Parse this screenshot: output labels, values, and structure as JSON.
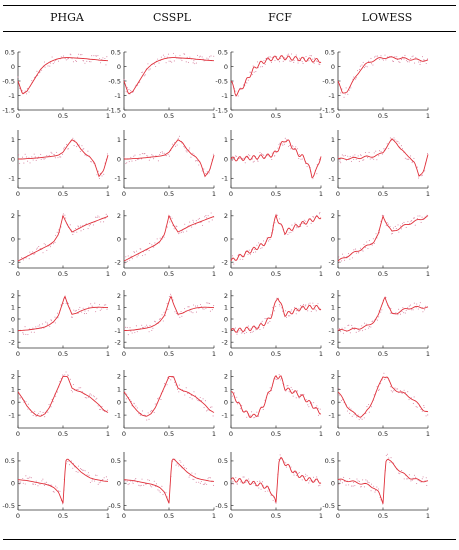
{
  "table": {
    "columns": [
      "PHGA",
      "CSSPL",
      "FCF",
      "LOWESS"
    ]
  },
  "colors": {
    "fit": "#e0303a",
    "points": "#d98aa6",
    "axis": "#333333"
  },
  "chart_data": [
    {
      "type": "scatter",
      "row": 1,
      "xlim": [
        0,
        1
      ],
      "ylim": [
        -1.5,
        0.5
      ],
      "yticks": [
        "0.5",
        "0",
        "-0.5",
        "-1",
        "-1.5"
      ],
      "xticks": [
        "0",
        "0.5",
        "1"
      ],
      "x": [
        0,
        0.05,
        0.1,
        0.15,
        0.2,
        0.25,
        0.3,
        0.35,
        0.4,
        0.45,
        0.5,
        0.55,
        0.6,
        0.65,
        0.7,
        0.75,
        0.8,
        0.85,
        0.9,
        0.95,
        1
      ],
      "y": [
        -0.5,
        -0.95,
        -0.85,
        -0.6,
        -0.35,
        -0.1,
        0.05,
        0.15,
        0.22,
        0.27,
        0.3,
        0.31,
        0.3,
        0.29,
        0.28,
        0.27,
        0.25,
        0.24,
        0.22,
        0.21,
        0.2
      ]
    },
    {
      "type": "scatter",
      "row": 2,
      "xlim": [
        0,
        1
      ],
      "ylim": [
        -1.5,
        1.5
      ],
      "yticks": [
        "1",
        "0",
        "-1"
      ],
      "xticks": [
        "0",
        "0.5",
        "1"
      ],
      "x": [
        0,
        0.05,
        0.1,
        0.15,
        0.2,
        0.25,
        0.3,
        0.35,
        0.4,
        0.45,
        0.5,
        0.55,
        0.6,
        0.65,
        0.7,
        0.75,
        0.8,
        0.85,
        0.9,
        0.95,
        1
      ],
      "y": [
        0,
        0,
        0.02,
        0.03,
        0.05,
        0.07,
        0.1,
        0.12,
        0.15,
        0.2,
        0.35,
        0.7,
        1.0,
        0.85,
        0.5,
        0.25,
        0.1,
        -0.2,
        -0.9,
        -0.6,
        0.2
      ]
    },
    {
      "type": "scatter",
      "row": 3,
      "xlim": [
        0,
        1
      ],
      "ylim": [
        -2.5,
        2.5
      ],
      "yticks": [
        "2",
        "0",
        "-2"
      ],
      "xticks": [
        "0",
        "0.5",
        "1"
      ],
      "x": [
        0,
        0.05,
        0.1,
        0.15,
        0.2,
        0.25,
        0.3,
        0.35,
        0.4,
        0.45,
        0.5,
        0.55,
        0.6,
        0.65,
        0.7,
        0.75,
        0.8,
        0.85,
        0.9,
        0.95,
        1
      ],
      "y": [
        -1.9,
        -1.7,
        -1.5,
        -1.3,
        -1.1,
        -0.9,
        -0.7,
        -0.5,
        -0.2,
        0.4,
        2.0,
        1.2,
        0.6,
        0.8,
        1.0,
        1.2,
        1.35,
        1.5,
        1.65,
        1.8,
        1.95
      ]
    },
    {
      "type": "scatter",
      "row": 4,
      "xlim": [
        0,
        1
      ],
      "ylim": [
        -2.5,
        2.5
      ],
      "yticks": [
        "2",
        "1",
        "0",
        "-1",
        "-2"
      ],
      "xticks": [
        "0",
        "0.5",
        "1"
      ],
      "x": [
        0,
        0.05,
        0.1,
        0.15,
        0.2,
        0.25,
        0.3,
        0.35,
        0.4,
        0.45,
        0.5,
        0.52,
        0.55,
        0.6,
        0.65,
        0.7,
        0.75,
        0.8,
        0.85,
        0.9,
        0.95,
        1
      ],
      "y": [
        -1.0,
        -0.98,
        -0.95,
        -0.9,
        -0.85,
        -0.78,
        -0.68,
        -0.5,
        -0.2,
        0.3,
        1.5,
        2.0,
        1.3,
        0.4,
        0.5,
        0.7,
        0.85,
        0.95,
        1.0,
        1.02,
        1.0,
        0.98
      ]
    },
    {
      "type": "scatter",
      "row": 5,
      "xlim": [
        0,
        1
      ],
      "ylim": [
        -2,
        2.5
      ],
      "yticks": [
        "2",
        "1",
        "0",
        "-1"
      ],
      "xticks": [
        "0",
        "0.5",
        "1"
      ],
      "x": [
        0,
        0.05,
        0.1,
        0.15,
        0.2,
        0.25,
        0.3,
        0.35,
        0.4,
        0.45,
        0.5,
        0.55,
        0.6,
        0.65,
        0.7,
        0.75,
        0.8,
        0.85,
        0.9,
        0.95,
        1
      ],
      "y": [
        0.8,
        0.3,
        -0.3,
        -0.7,
        -1.0,
        -1.1,
        -0.9,
        -0.4,
        0.4,
        1.2,
        2.0,
        2.0,
        1.1,
        0.9,
        0.8,
        0.6,
        0.4,
        0.1,
        -0.2,
        -0.6,
        -0.8
      ]
    },
    {
      "type": "scatter",
      "row": 6,
      "xlim": [
        0,
        1
      ],
      "ylim": [
        -0.6,
        0.7
      ],
      "yticks": [
        "0.5",
        "0",
        "-0.5"
      ],
      "xticks": [
        "0",
        "0.5",
        "1"
      ],
      "x": [
        0,
        0.05,
        0.1,
        0.15,
        0.2,
        0.25,
        0.3,
        0.35,
        0.4,
        0.45,
        0.5,
        0.53,
        0.55,
        0.6,
        0.65,
        0.7,
        0.75,
        0.8,
        0.85,
        0.9,
        0.95,
        1
      ],
      "y": [
        0.08,
        0.07,
        0.06,
        0.04,
        0.02,
        0,
        -0.02,
        -0.05,
        -0.1,
        -0.2,
        -0.45,
        0.5,
        0.55,
        0.45,
        0.35,
        0.25,
        0.18,
        0.12,
        0.09,
        0.07,
        0.05,
        0.04
      ]
    }
  ]
}
